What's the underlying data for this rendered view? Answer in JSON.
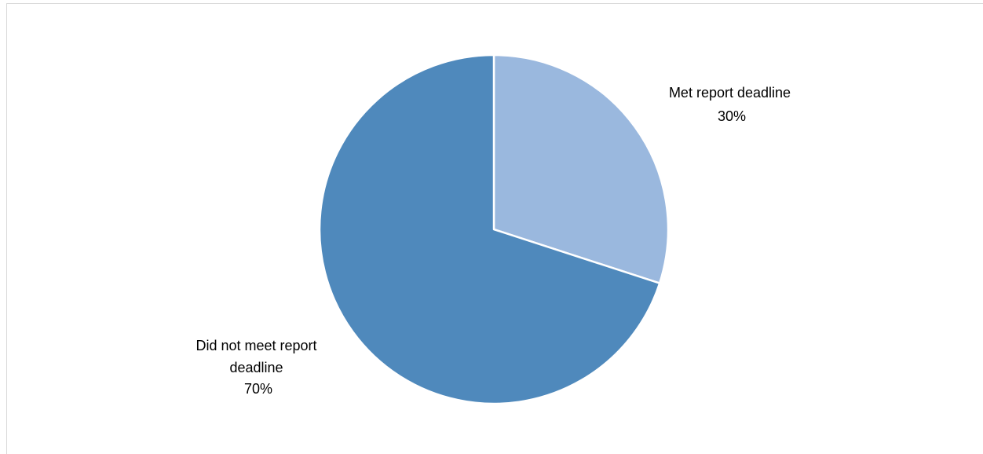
{
  "chart_data": {
    "type": "pie",
    "title": "",
    "start_angle_deg": 0,
    "direction": "clockwise",
    "slices": [
      {
        "category": "Met report deadline",
        "value": 30,
        "label_lines": [
          "Met report deadline"
        ],
        "value_label": "30%",
        "color": "#9ab8de"
      },
      {
        "category": "Did not meet report deadline",
        "value": 70,
        "label_lines": [
          "Did not meet report",
          "deadline"
        ],
        "value_label": "70%",
        "color": "#4f89bc"
      }
    ],
    "legend": "none",
    "slice_border_color": "#ffffff"
  }
}
